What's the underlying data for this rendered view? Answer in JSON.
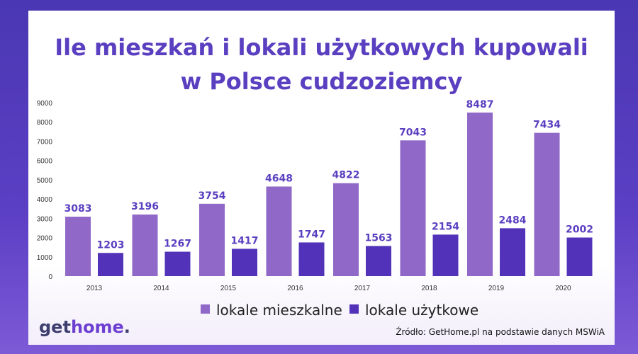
{
  "title_line1": "Ile mieszkań i lokali użytkowych kupowali",
  "title_line2": "w Polsce cudzoziemcy",
  "logo": {
    "part1": "get",
    "part2": "home",
    "dot": "."
  },
  "source": "Źródło: GetHome.pl na podstawie danych MSWiA",
  "colors": {
    "series1": "#9068c8",
    "series2": "#5232b8",
    "title": "#5a3fc0"
  },
  "chart_data": {
    "type": "bar",
    "title": "Ile mieszkań i lokali użytkowych kupowali w Polsce cudzoziemcy",
    "categories": [
      "2013",
      "2014",
      "2015",
      "2016",
      "2017",
      "2018",
      "2019",
      "2020"
    ],
    "series": [
      {
        "name": "lokale mieszkalne",
        "values": [
          3083,
          3196,
          3754,
          4648,
          4822,
          7043,
          8487,
          7434
        ]
      },
      {
        "name": "lokale użytkowe",
        "values": [
          1203,
          1267,
          1417,
          1747,
          1563,
          2154,
          2484,
          2002
        ]
      }
    ],
    "yticks": [
      0,
      1000,
      2000,
      3000,
      4000,
      5000,
      6000,
      7000,
      8000,
      9000
    ],
    "ylim": [
      0,
      9000
    ],
    "grid": false,
    "legend": "bottom"
  }
}
